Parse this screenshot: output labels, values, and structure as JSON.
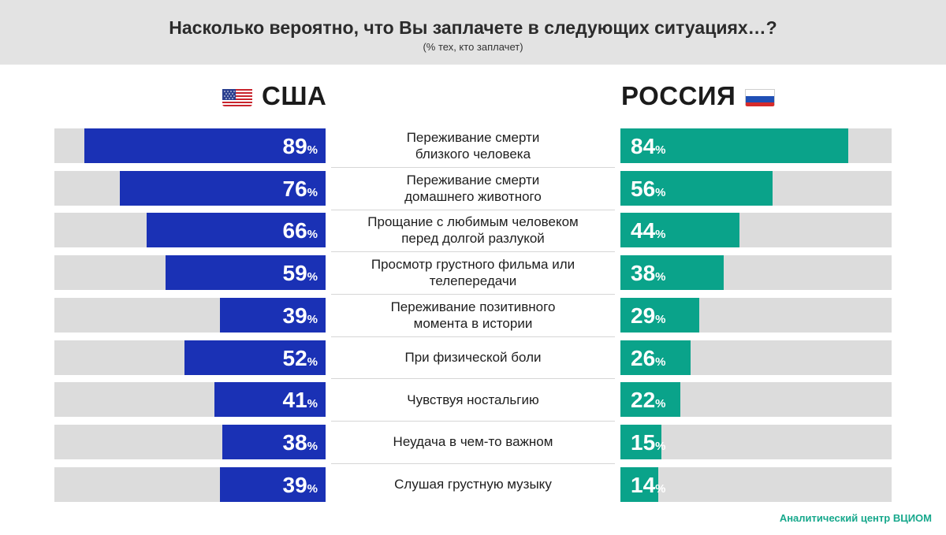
{
  "header": {
    "title": "Насколько вероятно, что Вы заплачете в следующих ситуациях…?",
    "subtitle": "(% тех, кто заплачет)"
  },
  "countries": {
    "usa": {
      "label": "США",
      "flag_icon": "us-flag-icon",
      "color": "#1a31b5"
    },
    "russia": {
      "label": "РОССИЯ",
      "flag_icon": "ru-flag-icon",
      "color": "#0aa38a"
    }
  },
  "percent_sign": "%",
  "source": "Аналитический центр ВЦИОМ",
  "chart_data": {
    "type": "bar",
    "orientation": "horizontal-diverging",
    "title": "Насколько вероятно, что Вы заплачете в следующих ситуациях…?",
    "subtitle": "(% тех, кто заплачет)",
    "xlim": [
      0,
      100
    ],
    "categories": [
      "Переживание смерти\nблизкого человека",
      "Переживание смерти\nдомашнего животного",
      "Прощание с любимым человеком\nперед долгой разлукой",
      "Просмотр грустного фильма или\nтелепередачи",
      "Переживание позитивного\nмомента в истории",
      "При физической боли",
      "Чувствуя ностальгию",
      "Неудача в чем-то важном",
      "Слушая грустную музыку"
    ],
    "series": [
      {
        "name": "США",
        "values": [
          89,
          76,
          66,
          59,
          39,
          52,
          41,
          38,
          39
        ]
      },
      {
        "name": "РОССИЯ",
        "values": [
          84,
          56,
          44,
          38,
          29,
          26,
          22,
          15,
          14
        ]
      }
    ]
  }
}
